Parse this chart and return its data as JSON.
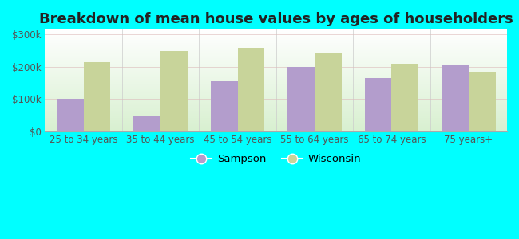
{
  "categories": [
    "25 to 34 years",
    "35 to 44 years",
    "45 to 54 years",
    "55 to 64 years",
    "65 to 74 years",
    "75 years+"
  ],
  "sampson_values": [
    100000,
    45000,
    155000,
    200000,
    165000,
    205000
  ],
  "wisconsin_values": [
    215000,
    250000,
    258000,
    245000,
    210000,
    185000
  ],
  "sampson_color": "#b39dcc",
  "wisconsin_color": "#c8d49a",
  "title": "Breakdown of mean house values by ages of householders",
  "ylabel_ticks": [
    0,
    100000,
    200000,
    300000
  ],
  "ylabel_labels": [
    "$0",
    "$100k",
    "$200k",
    "$300k"
  ],
  "ylim": [
    0,
    315000
  ],
  "background_color": "#00ffff",
  "plot_bg_top": "#ffffff",
  "plot_bg_bottom": "#d8f0d0",
  "legend_sampson": "Sampson",
  "legend_wisconsin": "Wisconsin",
  "bar_width": 0.35,
  "title_fontsize": 13,
  "tick_fontsize": 8.5,
  "legend_fontsize": 9.5
}
